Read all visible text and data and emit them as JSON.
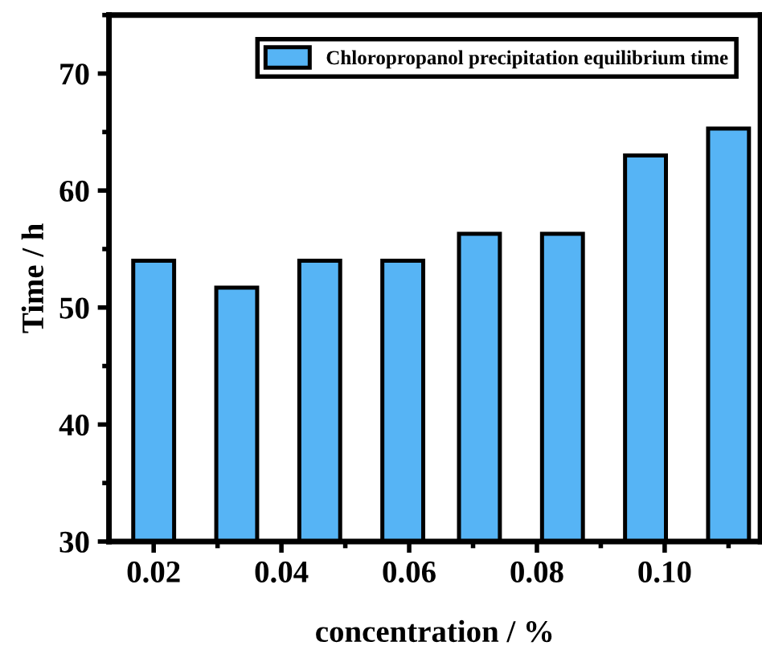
{
  "chart_data": {
    "type": "bar",
    "xlabel": "concentration / %",
    "ylabel": "Time / h",
    "x": [
      0.02,
      0.033,
      0.046,
      0.059,
      0.071,
      0.084,
      0.097,
      0.11
    ],
    "series": [
      {
        "name": "Chloropropanol precipitation equilibrium time",
        "color": "#56b4f5",
        "values": [
          54.0,
          51.7,
          54.0,
          54.0,
          56.3,
          56.3,
          63.0,
          65.3
        ]
      }
    ],
    "xlim": [
      0.013,
      0.115
    ],
    "xticks": [
      {
        "value": 0.02,
        "label": "0.02"
      },
      {
        "value": 0.04,
        "label": "0.04"
      },
      {
        "value": 0.06,
        "label": "0.06"
      },
      {
        "value": 0.08,
        "label": "0.08"
      },
      {
        "value": 0.1,
        "label": "0.10"
      }
    ],
    "ylim": [
      30,
      75
    ],
    "yticks": [
      30,
      40,
      50,
      60,
      70
    ],
    "grid": false,
    "legend": "top right"
  }
}
